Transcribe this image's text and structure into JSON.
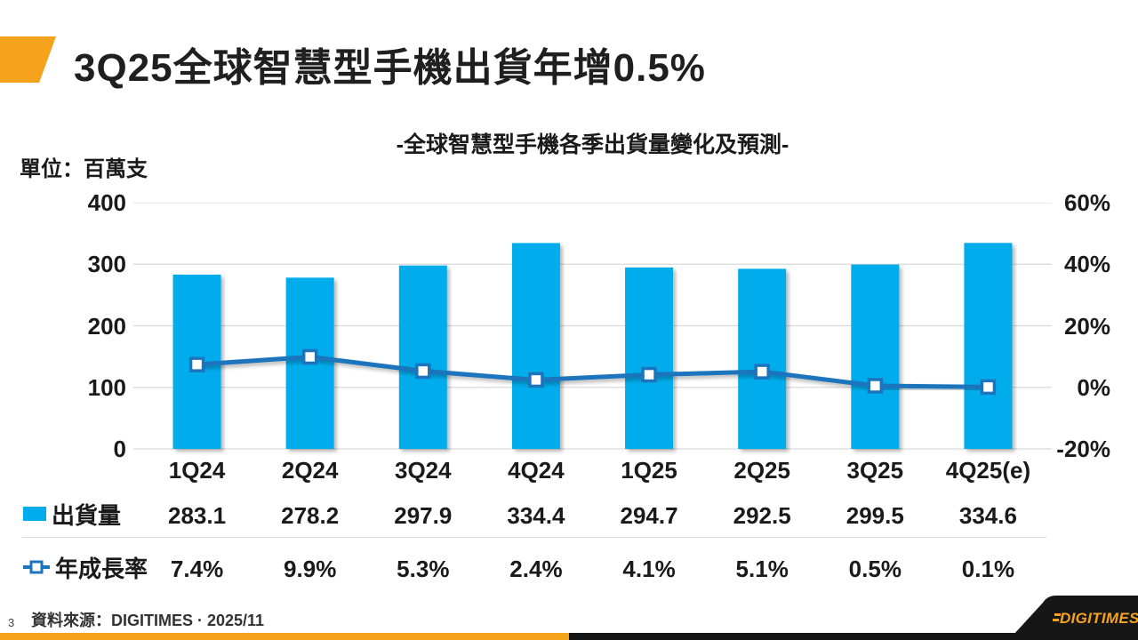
{
  "slide": {
    "title": "3Q25全球智慧型手機出貨年增0.5%",
    "page_number": "3",
    "source": "資料來源：DIGITIMES · 2025/11",
    "logo_text": "DIGITIMES",
    "accent_color": "#F5A21D",
    "footer_bar_colors": {
      "left": "#F5A21D",
      "right": "#161616"
    }
  },
  "chart_data": {
    "type": "bar",
    "subtype": "bar+line combo, dual axis",
    "title": "-全球智慧型手機各季出貨量變化及預測-",
    "unit_label": "單位：百萬支",
    "categories": [
      "1Q24",
      "2Q24",
      "3Q24",
      "4Q24",
      "1Q25",
      "2Q25",
      "3Q25",
      "4Q25(e)"
    ],
    "series": [
      {
        "name": "出貨量",
        "type": "bar",
        "axis": "left",
        "values": [
          283.1,
          278.2,
          297.9,
          334.4,
          294.7,
          292.5,
          299.5,
          334.6
        ],
        "value_labels": [
          "283.1",
          "278.2",
          "297.9",
          "334.4",
          "294.7",
          "292.5",
          "299.5",
          "334.6"
        ]
      },
      {
        "name": "年成長率",
        "type": "line",
        "axis": "right",
        "values": [
          7.4,
          9.9,
          5.3,
          2.4,
          4.1,
          5.1,
          0.5,
          0.1
        ],
        "value_labels": [
          "7.4%",
          "9.9%",
          "5.3%",
          "2.4%",
          "4.1%",
          "5.1%",
          "0.5%",
          "0.1%"
        ]
      }
    ],
    "left_axis": {
      "ticks": [
        "400",
        "300",
        "200",
        "100",
        "0"
      ],
      "tick_values": [
        400,
        300,
        200,
        100,
        0
      ],
      "min": 0,
      "max": 400
    },
    "right_axis": {
      "ticks": [
        "60%",
        "40%",
        "20%",
        "0%",
        "-20%"
      ],
      "tick_values": [
        60,
        40,
        20,
        0,
        -20
      ],
      "min": -20,
      "max": 60
    },
    "grid": "horizontal only",
    "legend_position": "data table below chart",
    "colors": {
      "bar": "#00ACEC",
      "line": "#1B74BC",
      "grid": "#D9D9D9",
      "text": "#1A1A1A"
    }
  }
}
